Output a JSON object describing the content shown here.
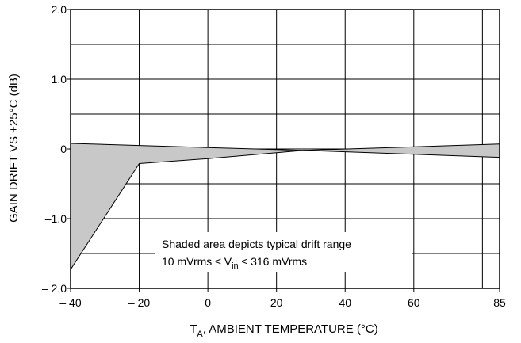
{
  "chart_data": {
    "type": "area",
    "title": "",
    "xlabel": {
      "main": "T",
      "subscript": "A",
      "rest": ", AMBIENT TEMPERATURE (°C)"
    },
    "ylabel": "GAIN DRIFT VS +25°C (dB)",
    "xlim": [
      -40,
      85
    ],
    "ylim": [
      -2.0,
      2.0
    ],
    "grid": true,
    "x_ticks": [
      -40,
      -20,
      0,
      20,
      40,
      60,
      85
    ],
    "x_tick_labels": [
      "– 40",
      "– 20",
      "0",
      "20",
      "40",
      "60",
      "85"
    ],
    "x_gridlines": [
      -40,
      -20,
      0,
      20,
      40,
      60,
      80,
      85
    ],
    "y_ticks": [
      2.0,
      1.0,
      0,
      -1.0,
      -2.0
    ],
    "y_tick_labels": [
      "2.0",
      "1.0",
      "0",
      "–1.0",
      "– 2.0"
    ],
    "y_gridlines": [
      2.0,
      1.5,
      1.0,
      0.5,
      0,
      -0.5,
      -1.0,
      -1.5,
      -2.0
    ],
    "series": [
      {
        "role": "upper bound",
        "x": [
          -40,
          -20,
          0,
          28,
          85
        ],
        "y": [
          0.08,
          0.05,
          0.02,
          -0.02,
          0.07
        ]
      },
      {
        "role": "lower bound",
        "x": [
          -40,
          -20,
          0,
          28,
          85
        ],
        "y": [
          -1.73,
          -0.21,
          -0.14,
          -0.02,
          -0.12
        ]
      }
    ],
    "fill_color": "#c8c8c8",
    "annotation": {
      "line1": "Shaded area depicts typical drift range",
      "line2_pre": "10 mVrms ≤ V",
      "line2_sub": "in",
      "line2_post": " ≤ 316 mVrms"
    }
  }
}
